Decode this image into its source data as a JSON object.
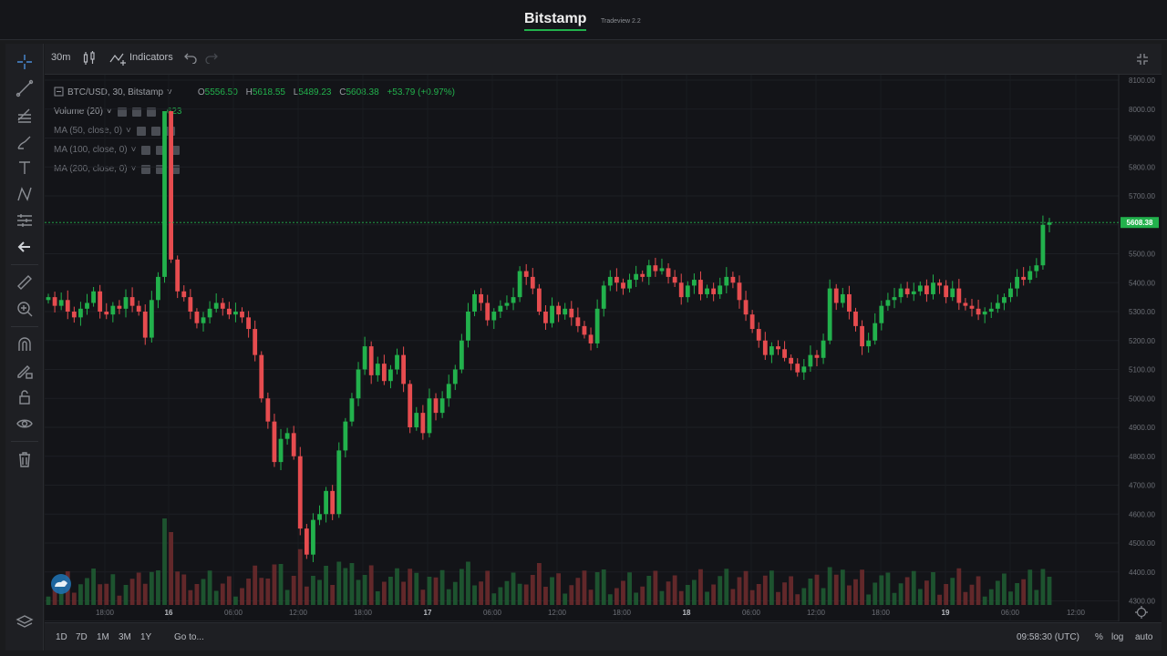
{
  "header": {
    "brand": "Bitstamp",
    "version": "Tradeview 2.2"
  },
  "toolbar": {
    "interval": "30m",
    "indicators_label": "Indicators"
  },
  "legend": {
    "symbol": "BTC/USD, 30, Bitstamp",
    "open_label": "O",
    "open": "5556.50",
    "high_label": "H",
    "high": "5618.55",
    "low_label": "L",
    "low": "5489.23",
    "close_label": "C",
    "close": "5608.38",
    "change": "+53.79 (+0.97%)",
    "volume_label": "Volume (20)",
    "volume_value": "623",
    "ma1": "MA (50, close, 0)",
    "ma2": "MA (100, close, 0)",
    "ma3": "MA (200, close, 0)"
  },
  "bottom": {
    "ranges": [
      "1D",
      "7D",
      "1M",
      "3M",
      "1Y"
    ],
    "goto": "Go to...",
    "clock": "09:58:30 (UTC)",
    "pct": "%",
    "log": "log",
    "auto": "auto"
  },
  "colors": {
    "up": "#22b14c",
    "down": "#e64c4f",
    "bg": "#131418",
    "accent": "#22b14c"
  },
  "icons": [
    "crosshair-icon",
    "trend-line-icon",
    "fib-icon",
    "brush-icon",
    "text-icon",
    "pattern-icon",
    "measure-lines-icon",
    "back-arrow-icon",
    "ruler-icon",
    "zoom-in-icon",
    "magnet-icon",
    "lock-draw-icon",
    "unlock-icon",
    "eye-icon",
    "trash-icon",
    "layers-icon"
  ],
  "chart_data": {
    "type": "candlestick",
    "last_price": "5608.38",
    "y_ticks": [
      "8100.00",
      "8000.00",
      "5900.00",
      "5800.00",
      "5700.00",
      "5600.00",
      "5500.00",
      "5400.00",
      "5300.00",
      "5200.00",
      "5100.00",
      "5000.00",
      "4900.00",
      "4800.00",
      "4700.00",
      "4600.00",
      "4500.00",
      "4400.00",
      "4300.00"
    ],
    "x_ticks": [
      "18:00",
      "16",
      "06:00",
      "12:00",
      "18:00",
      "17",
      "06:00",
      "12:00",
      "18:00",
      "18",
      "06:00",
      "12:00",
      "18:00",
      "19",
      "06:00",
      "12:00"
    ],
    "series": [
      {
        "name": "price",
        "close": [
          5350,
          5320,
          5340,
          5300,
          5280,
          5310,
          5330,
          5370,
          5300,
          5290,
          5320,
          5310,
          5350,
          5320,
          5300,
          5210,
          5340,
          5420,
          6000,
          5480,
          5370,
          5350,
          5300,
          5260,
          5280,
          5310,
          5330,
          5310,
          5290,
          5300,
          5280,
          5240,
          5150,
          5000,
          4920,
          4780,
          4860,
          4880,
          4800,
          4550,
          4460,
          4580,
          4600,
          4680,
          4600,
          4820,
          4920,
          5000,
          5100,
          5180,
          5080,
          5120,
          5060,
          5100,
          5150,
          5050,
          4900,
          4950,
          4880,
          5000,
          4950,
          5000,
          5050,
          5100,
          5200,
          5300,
          5360,
          5330,
          5270,
          5300,
          5320,
          5330,
          5350,
          5440,
          5420,
          5380,
          5300,
          5260,
          5320,
          5290,
          5310,
          5280,
          5250,
          5220,
          5190,
          5310,
          5390,
          5420,
          5400,
          5380,
          5410,
          5430,
          5420,
          5460,
          5440,
          5450,
          5420,
          5400,
          5350,
          5390,
          5410,
          5360,
          5380,
          5360,
          5390,
          5420,
          5400,
          5340,
          5290,
          5240,
          5200,
          5150,
          5180,
          5170,
          5140,
          5120,
          5090,
          5110,
          5150,
          5140,
          5200,
          5380,
          5330,
          5360,
          5300,
          5250,
          5180,
          5200,
          5260,
          5320,
          5340,
          5350,
          5380,
          5360,
          5370,
          5390,
          5360,
          5400,
          5390,
          5350,
          5380,
          5330,
          5320,
          5310,
          5290,
          5300,
          5310,
          5330,
          5350,
          5380,
          5420,
          5410,
          5440,
          5460,
          5600,
          5608
        ]
      }
    ],
    "volume_series_name": "Volume (20)"
  }
}
